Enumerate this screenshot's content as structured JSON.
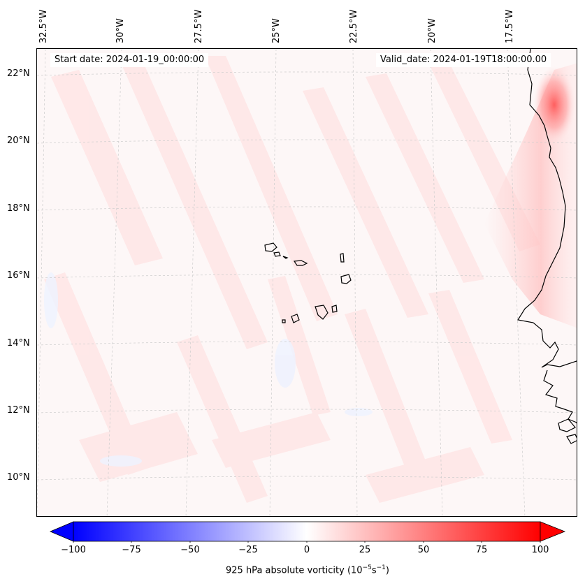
{
  "header": {
    "start_date": "Start date: 2024-01-19_00:00:00",
    "valid_date": "Valid_date: 2024-01-19T18:00:00.00"
  },
  "axes": {
    "longitude_labels": [
      "32.5°W",
      "30°W",
      "27.5°W",
      "25°W",
      "22.5°W",
      "20°W",
      "17.5°W"
    ],
    "latitude_labels": [
      "22°N",
      "20°N",
      "18°N",
      "16°N",
      "14°N",
      "12°N",
      "10°N"
    ]
  },
  "colorbar": {
    "ticks": [
      "−100",
      "−75",
      "−50",
      "−25",
      "0",
      "25",
      "50",
      "75",
      "100"
    ],
    "label_main": "925 hPa absolute vorticity (10",
    "label_exp1": "−5",
    "label_mid": "s",
    "label_exp2": "−1",
    "label_end": ")",
    "colors": {
      "low": "#0000ff",
      "mid": "#ffffff",
      "high": "#ff0000"
    }
  },
  "map": {
    "background": "#fdf7f7",
    "coast_color": "#000000",
    "grid_color": "#cccccc"
  }
}
